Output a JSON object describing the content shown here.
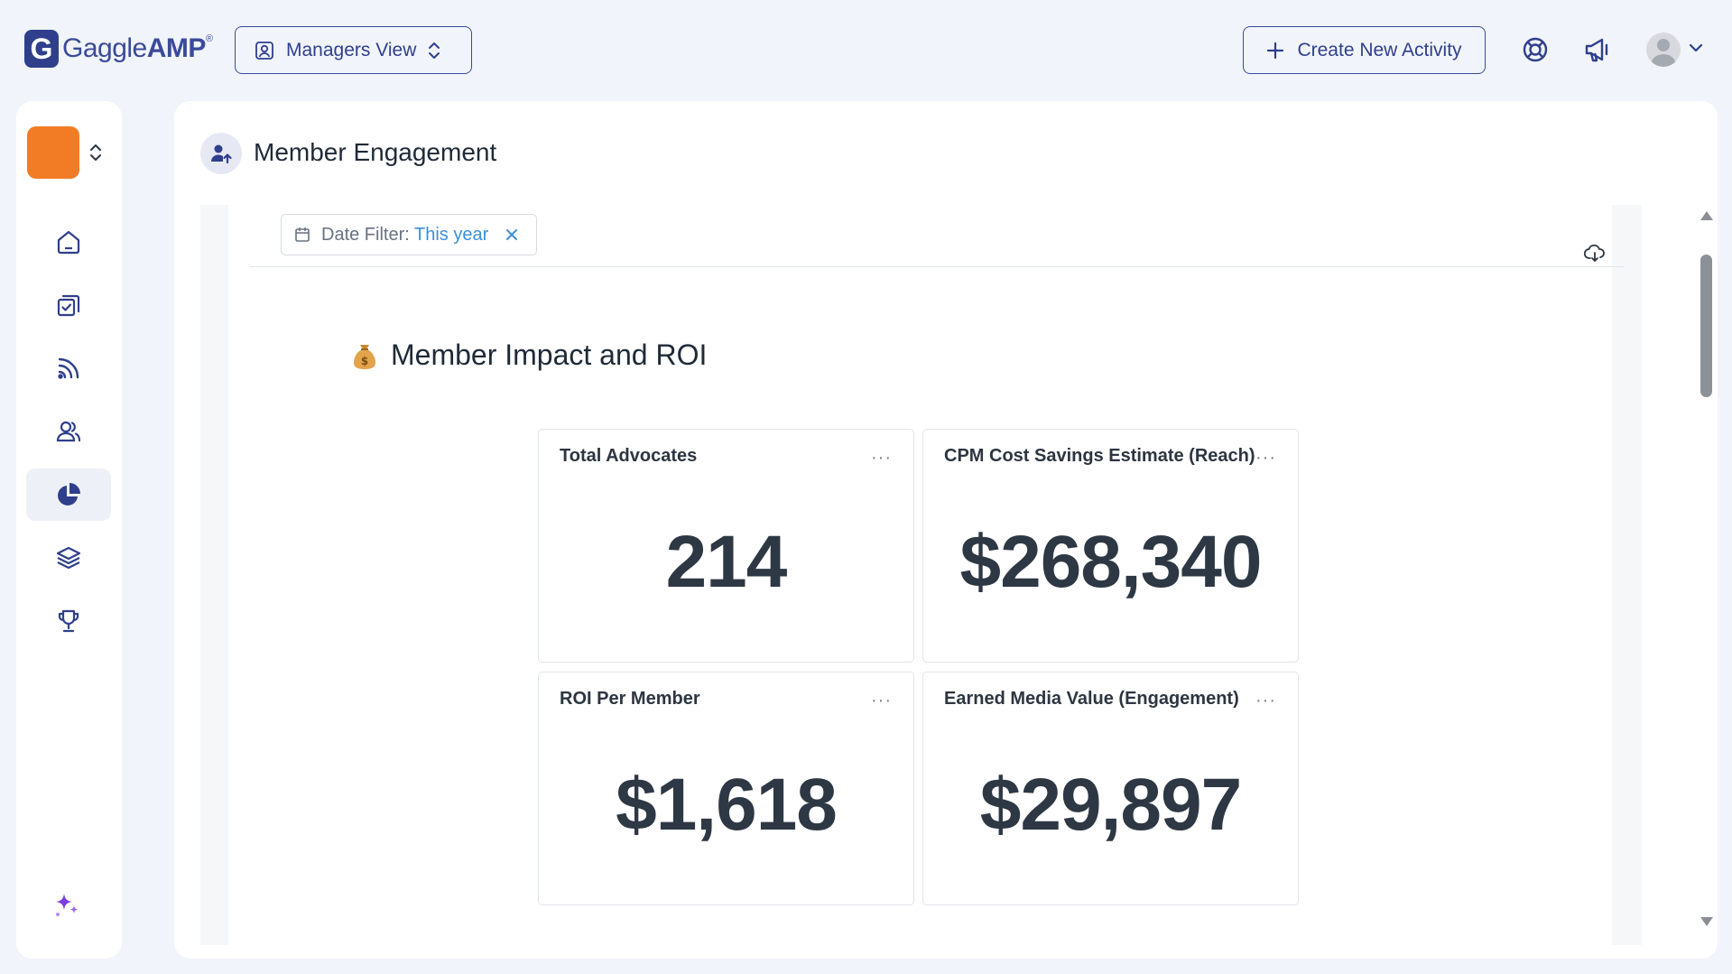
{
  "brand": {
    "name_light": "Gaggle",
    "name_bold": "AMP",
    "mark": "G",
    "reg": "®",
    "color": "#2f3f8c"
  },
  "header": {
    "view_switch_label": "Managers View",
    "create_button_label": "Create New Activity",
    "icons": [
      "user-square-icon",
      "chevron-updown-icon",
      "plus-icon",
      "lifebuoy-icon",
      "megaphone-icon",
      "avatar",
      "chevron-down-icon"
    ]
  },
  "sidebar": {
    "org_color": "#f27c25",
    "items": [
      {
        "name": "home",
        "icon": "home-icon",
        "active": false
      },
      {
        "name": "activities",
        "icon": "checklist-icon",
        "active": false
      },
      {
        "name": "feed",
        "icon": "rss-icon",
        "active": false
      },
      {
        "name": "members",
        "icon": "users-icon",
        "active": false
      },
      {
        "name": "reports",
        "icon": "pie-chart-icon",
        "active": true
      },
      {
        "name": "layers",
        "icon": "layers-icon",
        "active": false
      },
      {
        "name": "rewards",
        "icon": "trophy-icon",
        "active": false
      }
    ],
    "ai_icon": "sparkle-icon"
  },
  "page": {
    "title": "Member Engagement",
    "filter": {
      "label": "Date Filter:",
      "value": "This year"
    },
    "section_title": "Member Impact and ROI",
    "section_icon": "money-bag-icon"
  },
  "cards": [
    {
      "title": "Total Advocates",
      "value": "214"
    },
    {
      "title": "CPM Cost Savings Estimate (Reach)",
      "value": "$268,340"
    },
    {
      "title": "ROI Per Member",
      "value": "$1,618"
    },
    {
      "title": "Earned Media Value (Engagement)",
      "value": "$29,897"
    }
  ],
  "card_menu": "···"
}
